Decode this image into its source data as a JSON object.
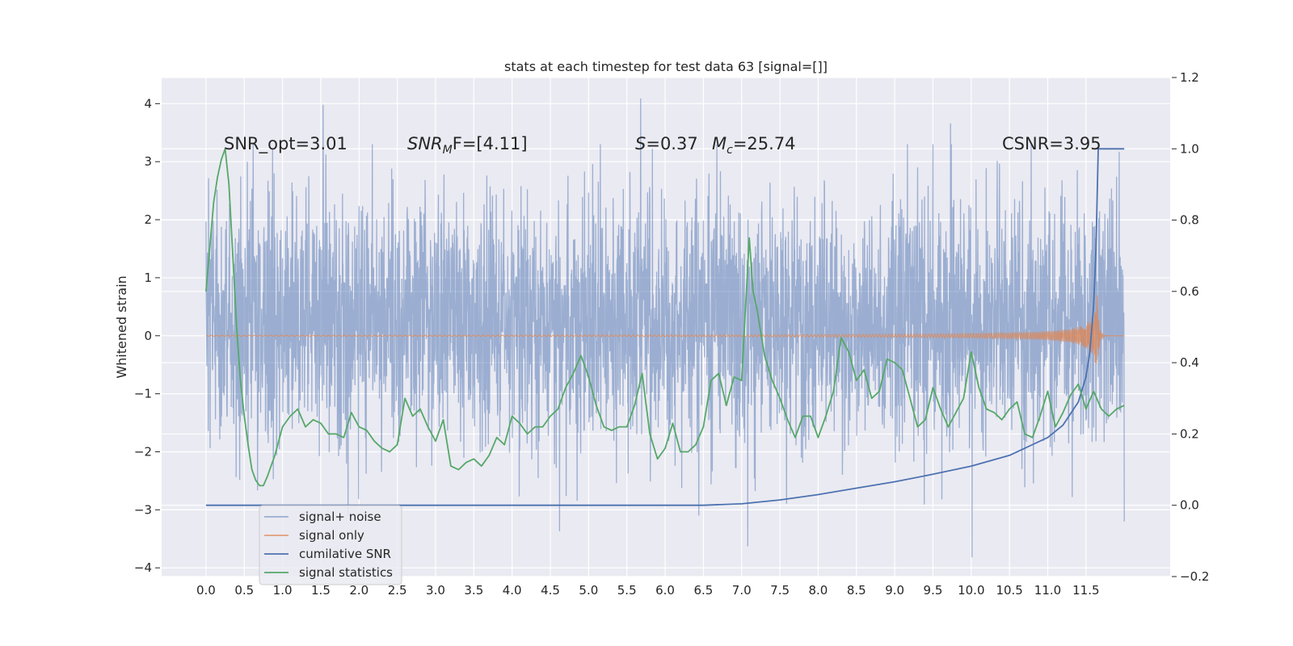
{
  "chart_data": {
    "type": "line",
    "title": "stats at each timestep for test data 63 [signal=[]]",
    "ylabel": "Whitened strain",
    "xlabel": "",
    "x_ticks": [
      "0.0",
      "0.5",
      "1.0",
      "1.5",
      "2.0",
      "2.5",
      "3.0",
      "3.5",
      "4.0",
      "4.5",
      "5.0",
      "5.5",
      "6.0",
      "6.5",
      "7.0",
      "7.5",
      "8.0",
      "8.5",
      "9.0",
      "9.5",
      "10.0",
      "10.5",
      "11.0",
      "11.5"
    ],
    "y_left_ticks": [
      "4",
      "3",
      "2",
      "1",
      "0",
      "−1",
      "−2",
      "−3",
      "−4"
    ],
    "y_right_ticks": [
      "1.2",
      "1.0",
      "0.8",
      "0.6",
      "0.4",
      "0.2",
      "0.0",
      "−0.2"
    ],
    "xlim": [
      -0.58,
      12.6
    ],
    "ylim_left": [
      -4.15,
      4.45
    ],
    "ylim_right": [
      -0.2,
      1.2
    ],
    "grid": true,
    "legend_position": "lower-left",
    "annotations": {
      "snr_opt": "SNR_opt=3.01",
      "snr_mf_base": "SNR",
      "snr_mf_sub": "M",
      "snr_mf_rest": "F=[4.11]",
      "s_italic": "S",
      "s_value": "=0.37",
      "mc_base": "M",
      "mc_sub": "c",
      "mc_value": "=25.74",
      "csnr": "CSNR=3.95"
    },
    "series": [
      {
        "name": "signal+ noise",
        "axis": "left",
        "color": "#4c72b0",
        "alpha": 0.5,
        "description_values": "dense whitened noise spanning approx -2 to +2.5 with spikes to +4.1 and -3.8",
        "x_range": [
          0.0,
          12.0
        ],
        "notable_peaks": [
          [
            1.53,
            3.98
          ],
          [
            5.68,
            4.09
          ],
          [
            9.73,
            3.66
          ],
          [
            10.01,
            -3.82
          ],
          [
            7.08,
            -3.63
          ],
          [
            4.62,
            -3.37
          ],
          [
            12.0,
            -3.2
          ]
        ]
      },
      {
        "name": "signal only",
        "axis": "left",
        "color": "#dd8452",
        "description_values": "near zero until ~9.5 then chirp growing to amplitude ~0.7 at 11.65",
        "x_range": [
          0.0,
          12.0
        ],
        "chirp_start": 9.5,
        "merger_x": 11.65,
        "peak_amplitude": 0.7
      },
      {
        "name": "cumilative SNR",
        "axis": "right",
        "color": "#4c72b0",
        "x": [
          0.0,
          6.5,
          7.0,
          7.5,
          8.0,
          8.5,
          9.0,
          9.5,
          10.0,
          10.5,
          11.0,
          11.2,
          11.4,
          11.5,
          11.55,
          11.6,
          11.63,
          11.66,
          11.7,
          12.0
        ],
        "y": [
          0.0,
          0.0,
          0.004,
          0.015,
          0.03,
          0.048,
          0.066,
          0.087,
          0.11,
          0.14,
          0.19,
          0.225,
          0.29,
          0.36,
          0.43,
          0.56,
          0.72,
          1.0,
          1.0,
          1.0
        ]
      },
      {
        "name": "signal statistics",
        "axis": "right",
        "color": "#55a868",
        "x": [
          0.0,
          0.1,
          0.15,
          0.2,
          0.25,
          0.3,
          0.35,
          0.4,
          0.45,
          0.5,
          0.55,
          0.6,
          0.65,
          0.7,
          0.75,
          0.8,
          0.9,
          1.0,
          1.1,
          1.2,
          1.3,
          1.4,
          1.5,
          1.6,
          1.7,
          1.8,
          1.9,
          2.0,
          2.1,
          2.2,
          2.3,
          2.4,
          2.5,
          2.6,
          2.7,
          2.8,
          2.9,
          3.0,
          3.1,
          3.2,
          3.3,
          3.4,
          3.5,
          3.6,
          3.7,
          3.8,
          3.9,
          4.0,
          4.1,
          4.2,
          4.3,
          4.4,
          4.5,
          4.6,
          4.7,
          4.8,
          4.9,
          5.0,
          5.1,
          5.2,
          5.3,
          5.4,
          5.5,
          5.6,
          5.7,
          5.8,
          5.9,
          6.0,
          6.1,
          6.2,
          6.3,
          6.4,
          6.5,
          6.6,
          6.7,
          6.8,
          6.9,
          7.0,
          7.1,
          7.15,
          7.2,
          7.3,
          7.4,
          7.5,
          7.6,
          7.7,
          7.8,
          7.9,
          8.0,
          8.1,
          8.2,
          8.3,
          8.4,
          8.5,
          8.6,
          8.7,
          8.8,
          8.9,
          9.0,
          9.1,
          9.2,
          9.3,
          9.4,
          9.5,
          9.6,
          9.7,
          9.8,
          9.9,
          10.0,
          10.1,
          10.2,
          10.3,
          10.4,
          10.5,
          10.6,
          10.7,
          10.8,
          10.9,
          11.0,
          11.1,
          11.2,
          11.3,
          11.4,
          11.5,
          11.6,
          11.7,
          11.8,
          11.9,
          12.0
        ],
        "y": [
          0.6,
          0.85,
          0.92,
          0.97,
          1.0,
          0.9,
          0.7,
          0.5,
          0.35,
          0.25,
          0.17,
          0.1,
          0.07,
          0.055,
          0.055,
          0.08,
          0.14,
          0.22,
          0.25,
          0.27,
          0.22,
          0.24,
          0.23,
          0.2,
          0.2,
          0.19,
          0.26,
          0.22,
          0.21,
          0.18,
          0.16,
          0.15,
          0.17,
          0.3,
          0.25,
          0.27,
          0.22,
          0.18,
          0.24,
          0.11,
          0.1,
          0.12,
          0.13,
          0.11,
          0.14,
          0.19,
          0.17,
          0.25,
          0.23,
          0.2,
          0.22,
          0.22,
          0.25,
          0.27,
          0.33,
          0.37,
          0.42,
          0.36,
          0.28,
          0.22,
          0.21,
          0.22,
          0.22,
          0.28,
          0.37,
          0.2,
          0.13,
          0.16,
          0.23,
          0.15,
          0.15,
          0.17,
          0.22,
          0.35,
          0.37,
          0.28,
          0.36,
          0.35,
          0.75,
          0.6,
          0.55,
          0.42,
          0.35,
          0.3,
          0.24,
          0.19,
          0.25,
          0.25,
          0.19,
          0.25,
          0.32,
          0.47,
          0.43,
          0.35,
          0.38,
          0.3,
          0.32,
          0.41,
          0.4,
          0.38,
          0.3,
          0.22,
          0.24,
          0.33,
          0.27,
          0.22,
          0.26,
          0.3,
          0.43,
          0.33,
          0.27,
          0.26,
          0.24,
          0.27,
          0.29,
          0.2,
          0.19,
          0.25,
          0.32,
          0.22,
          0.26,
          0.31,
          0.34,
          0.27,
          0.32,
          0.27,
          0.25,
          0.27,
          0.28
        ]
      }
    ]
  }
}
